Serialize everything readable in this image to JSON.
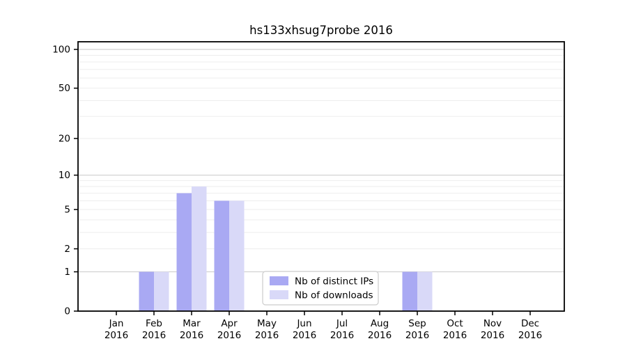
{
  "title": "hs133xhsug7probe 2016",
  "chart_data": {
    "type": "bar",
    "title": "hs133xhsug7probe 2016",
    "categories": [
      "Jan 2016",
      "Feb 2016",
      "Mar 2016",
      "Apr 2016",
      "May 2016",
      "Jun 2016",
      "Jul 2016",
      "Aug 2016",
      "Sep 2016",
      "Oct 2016",
      "Nov 2016",
      "Dec 2016"
    ],
    "series": [
      {
        "name": "Nb of distinct IPs",
        "color": "#a9a9f3",
        "values": [
          0,
          1,
          7,
          6,
          0,
          0,
          0,
          0,
          1,
          0,
          0,
          0
        ]
      },
      {
        "name": "Nb of downloads",
        "color": "#d9d9f8",
        "values": [
          0,
          1,
          8,
          6,
          0,
          0,
          0,
          0,
          1,
          0,
          0,
          0
        ]
      }
    ],
    "xlabel": "",
    "ylabel": "",
    "y_scale": "log1p",
    "ylim": [
      0,
      100
    ],
    "y_ticks": [
      0,
      1,
      2,
      5,
      10,
      20,
      50,
      100
    ],
    "y_minor_gridlines": [
      2,
      3,
      4,
      5,
      6,
      7,
      8,
      9,
      20,
      30,
      40,
      50,
      60,
      70,
      80,
      90
    ],
    "y_major_gridlines": [
      1,
      10,
      100
    ],
    "grid": true,
    "legend": {
      "entries": [
        "Nb of distinct IPs",
        "Nb of downloads"
      ],
      "position": "inside lower center-left"
    },
    "colors": {
      "axis": "#000000",
      "minor_grid": "#ededed",
      "major_grid": "#d2d2d2",
      "background": "#ffffff",
      "legend_border": "#cccccc"
    }
  }
}
